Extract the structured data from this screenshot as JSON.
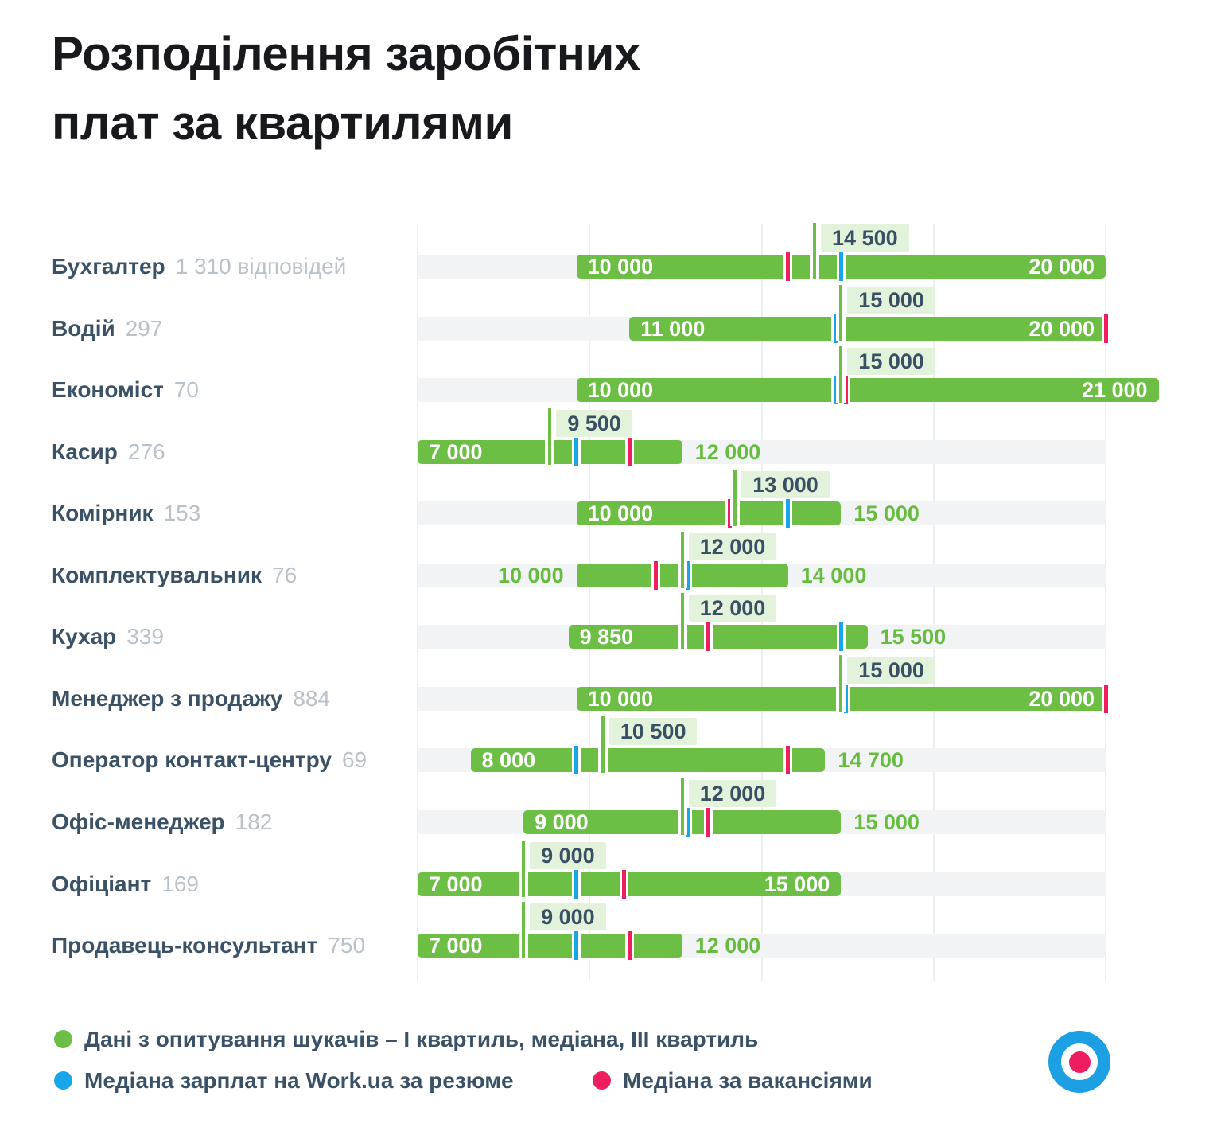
{
  "title": {
    "line1": "Розподілення заробітних",
    "line2": "плат за квартилями"
  },
  "chart_data": {
    "type": "bar",
    "title": "Розподілення заробітних плат за квартилями",
    "x_axis": {
      "min": 7000,
      "max": 20000,
      "overflow_max": 21000,
      "grid": true,
      "gridlines": [
        7000,
        10250,
        13500,
        16750,
        20000
      ]
    },
    "rows": [
      {
        "label": "Бухгалтер",
        "count": "1 310 відповідей",
        "q1": 10000,
        "median": 14500,
        "q3": 20000,
        "resume_median": 15000,
        "vacancy_median": 14000,
        "q1_label": "inside",
        "q3_label": "inside"
      },
      {
        "label": "Водій",
        "count": "297",
        "q1": 11000,
        "median": 15000,
        "q3": 20000,
        "resume_median": 14900,
        "vacancy_median": 20000,
        "q1_label": "inside",
        "q3_label": "inside"
      },
      {
        "label": "Економіст",
        "count": "70",
        "q1": 10000,
        "median": 15000,
        "q3": 21000,
        "resume_median": 14900,
        "vacancy_median": 15100,
        "q1_label": "inside",
        "q3_label": "inside"
      },
      {
        "label": "Касир",
        "count": "276",
        "q1": 7000,
        "median": 9500,
        "q3": 12000,
        "resume_median": 10000,
        "vacancy_median": 11000,
        "q1_label": "inside",
        "q3_label": "outside"
      },
      {
        "label": "Комірник",
        "count": "153",
        "q1": 10000,
        "median": 13000,
        "q3": 15000,
        "resume_median": 14000,
        "vacancy_median": 12900,
        "q1_label": "inside",
        "q3_label": "outside"
      },
      {
        "label": "Комплектувальник",
        "count": "76",
        "q1": 10000,
        "median": 12000,
        "q3": 14000,
        "resume_median": 12100,
        "vacancy_median": 11500,
        "q1_label": "outside",
        "q3_label": "outside"
      },
      {
        "label": "Кухар",
        "count": "339",
        "q1": 9850,
        "median": 12000,
        "q3": 15500,
        "resume_median": 15000,
        "vacancy_median": 12500,
        "q1_label": "inside",
        "q3_label": "outside"
      },
      {
        "label": "Менеджер з продажу",
        "count": "884",
        "q1": 10000,
        "median": 15000,
        "q3": 20000,
        "resume_median": 15100,
        "vacancy_median": 20000,
        "q1_label": "inside",
        "q3_label": "inside"
      },
      {
        "label": "Оператор контакт-центру",
        "count": "69",
        "q1": 8000,
        "median": 10500,
        "q3": 14700,
        "resume_median": 10000,
        "vacancy_median": 14000,
        "q1_label": "inside",
        "q3_label": "outside"
      },
      {
        "label": "Офіс-менеджер",
        "count": "182",
        "q1": 9000,
        "median": 12000,
        "q3": 15000,
        "resume_median": 12100,
        "vacancy_median": 12500,
        "q1_label": "inside",
        "q3_label": "outside"
      },
      {
        "label": "Офіціант",
        "count": "169",
        "q1": 7000,
        "median": 9000,
        "q3": 15000,
        "resume_median": 10000,
        "vacancy_median": 10900,
        "q1_label": "inside",
        "q3_label": "inside"
      },
      {
        "label": "Продавець-консультант",
        "count": "750",
        "q1": 7000,
        "median": 9000,
        "q3": 12000,
        "resume_median": 10000,
        "vacancy_median": 11000,
        "q1_label": "inside",
        "q3_label": "outside"
      }
    ],
    "legend": [
      {
        "color": "#6cbe44",
        "label": "Дані з опитування шукачів – І квартиль, медіана, ІІІ квартиль"
      },
      {
        "color": "#19a5ea",
        "label": "Медіана зарплат на Work.ua за резюме"
      },
      {
        "color": "#ee1f5f",
        "label": "Медіана за вакансіями"
      }
    ],
    "colors": {
      "bar": "#6cbe44",
      "bar_label_outside": "#67bc3f",
      "resume_tick": "#19a5ea",
      "vacancy_tick": "#ee1f5f",
      "median_badge_bg": "#e3f3db",
      "median_badge_text": "#3a4f63",
      "track": "#f1f3f4",
      "gridline": "#eceef0",
      "row_label": "#3b5266",
      "row_count": "#b9c1c9",
      "title": "#17191c"
    }
  },
  "logo": {
    "name": "work-ua-logo",
    "ring": "#1ca0e3",
    "inner": "#ffffff",
    "center": "#ee1d60"
  }
}
